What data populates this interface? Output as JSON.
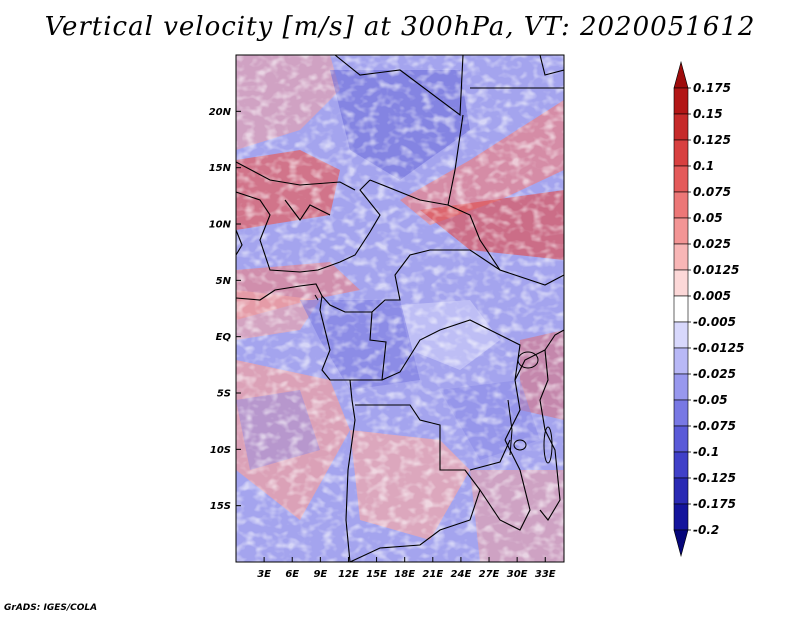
{
  "title": "Vertical velocity [m/s] at 300hPa, VT: 2020051612",
  "credit": "GrADS: IGES/COLA",
  "map": {
    "lat_labels": [
      "20N",
      "15N",
      "10N",
      "5N",
      "EQ",
      "5S",
      "10S",
      "15S"
    ],
    "lon_labels": [
      "3E",
      "6E",
      "9E",
      "12E",
      "15E",
      "18E",
      "21E",
      "24E",
      "27E",
      "30E",
      "33E"
    ]
  },
  "colorbar": {
    "labels": [
      "0.175",
      "0.15",
      "0.125",
      "0.1",
      "0.075",
      "0.05",
      "0.025",
      "0.0125",
      "0.005",
      "-0.005",
      "-0.0125",
      "-0.025",
      "-0.05",
      "-0.075",
      "-0.1",
      "-0.125",
      "-0.175",
      "-0.2"
    ],
    "colors": [
      "#9e0c0c",
      "#b21616",
      "#c62a2a",
      "#d84040",
      "#e45a5a",
      "#ec7777",
      "#f39595",
      "#f8b6b6",
      "#fcd8d8",
      "#ffffff",
      "#d8d8fc",
      "#b8b8f6",
      "#9898ee",
      "#7878e4",
      "#5a5ad8",
      "#4040c8",
      "#2a2ab4",
      "#14149c",
      "#06067a"
    ]
  },
  "chart_data": {
    "type": "heatmap",
    "title": "Vertical velocity [m/s] at 300hPa, VT: 2020051612",
    "variable": "Vertical velocity",
    "units": "m/s",
    "level": "300hPa",
    "valid_time": "2020051612",
    "lon_range": [
      0,
      35
    ],
    "lat_range": [
      -20,
      25
    ],
    "lon_ticks": [
      3,
      6,
      9,
      12,
      15,
      18,
      21,
      24,
      27,
      30,
      33
    ],
    "lat_ticks": [
      20,
      15,
      10,
      5,
      0,
      -5,
      -10,
      -15
    ],
    "contour_levels": [
      -0.2,
      -0.175,
      -0.125,
      -0.1,
      -0.075,
      -0.05,
      -0.025,
      -0.0125,
      -0.005,
      0.005,
      0.0125,
      0.025,
      0.05,
      0.075,
      0.1,
      0.125,
      0.15,
      0.175
    ]
  }
}
